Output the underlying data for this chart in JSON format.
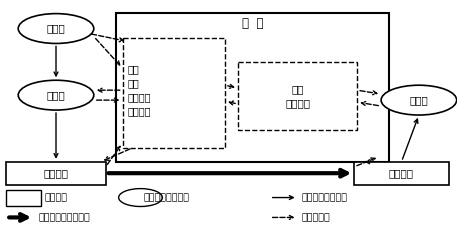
{
  "title": "总  部",
  "label_mianliao": "面料厂",
  "label_zhiyi": "制衣厂",
  "label_cangchu": "仓储中心",
  "label_peisong": "配送仓库",
  "label_xiaofei": "消费者",
  "label_inner1": "设计\n采购\n市场销售\n库存管理",
  "label_inner2": "网站\n呼叫中心",
  "legend_rect": "服装公司",
  "legend_ellipse": "服装公司的供应商",
  "legend_arrow1": "供应商完成的物流",
  "legend_arrow2": "物流公司完成的物流",
  "legend_dash": "实时信息流",
  "bg_color": "#ffffff"
}
